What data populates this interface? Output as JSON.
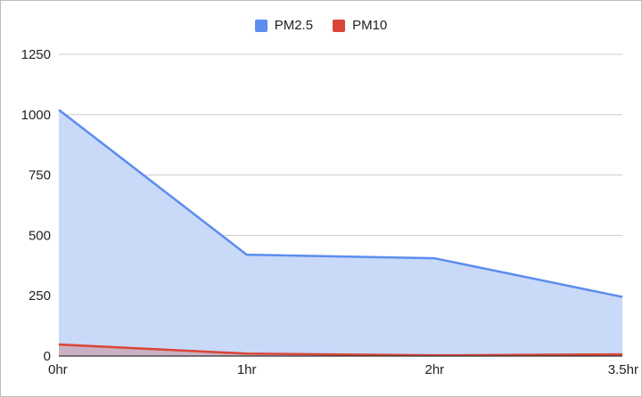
{
  "chart_data": {
    "type": "area",
    "title": "",
    "xlabel": "",
    "ylabel": "",
    "categories": [
      "0hr",
      "1hr",
      "2hr",
      "3.5hr"
    ],
    "ylim": [
      0,
      1250
    ],
    "yticks": [
      0,
      250,
      500,
      750,
      1000,
      1250
    ],
    "grid": true,
    "legend_position": "top",
    "stacked": false,
    "series": [
      {
        "name": "PM2.5",
        "values": [
          1020,
          420,
          405,
          245
        ],
        "color": "#5b8def",
        "fill": "#c9d9f8"
      },
      {
        "name": "PM10",
        "values": [
          48,
          10,
          3,
          7
        ],
        "color": "#d94436",
        "fill": "#c9a9b8"
      }
    ]
  }
}
